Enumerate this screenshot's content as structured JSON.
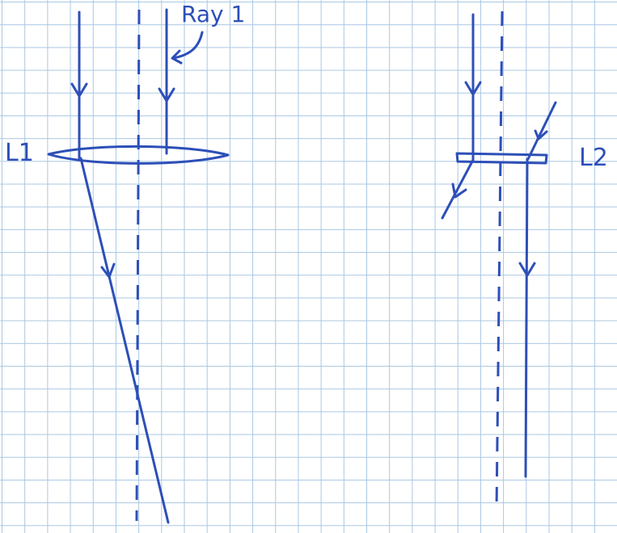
{
  "labels": {
    "lens1": "L1",
    "lens2": "L2",
    "ray1": "Ray 1"
  },
  "colors": {
    "ink": "#2d4fb8",
    "grid": "#a9c7e3",
    "paper": "#ffffff"
  }
}
